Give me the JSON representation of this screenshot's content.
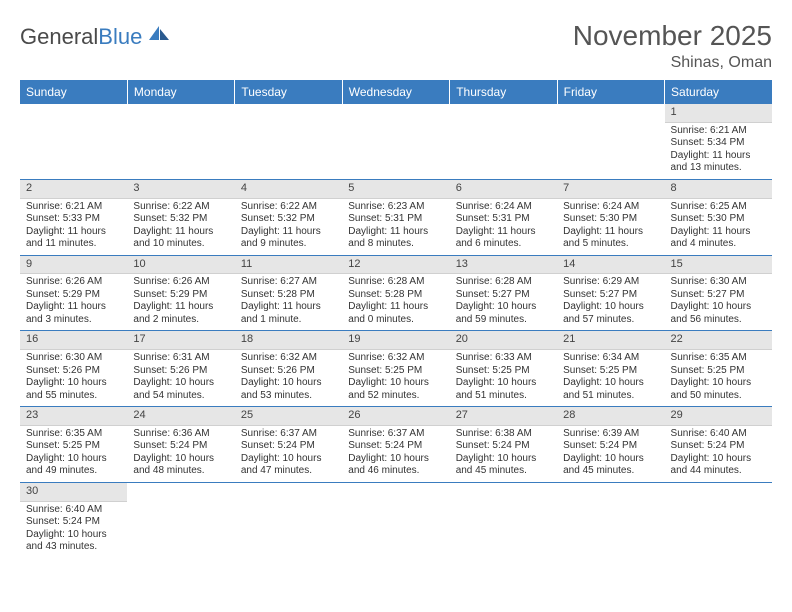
{
  "logo": {
    "textDark": "General",
    "textBlue": "Blue"
  },
  "header": {
    "monthTitle": "November 2025",
    "location": "Shinas, Oman"
  },
  "colors": {
    "headerBlue": "#3a7cbf",
    "dayNumBg": "#e6e6e6",
    "textDark": "#333333",
    "logoDark": "#4a4a4a",
    "logoBlue": "#3a7cbf",
    "borderBlue": "#3a7cbf"
  },
  "daysOfWeek": [
    "Sunday",
    "Monday",
    "Tuesday",
    "Wednesday",
    "Thursday",
    "Friday",
    "Saturday"
  ],
  "labels": {
    "sunrise": "Sunrise:",
    "sunset": "Sunset:",
    "daylight": "Daylight:",
    "and": "and"
  },
  "weeks": [
    [
      null,
      null,
      null,
      null,
      null,
      null,
      {
        "d": "1",
        "sr": "6:21 AM",
        "ss": "5:34 PM",
        "dl1": "11 hours",
        "dl2": "13 minutes."
      }
    ],
    [
      {
        "d": "2",
        "sr": "6:21 AM",
        "ss": "5:33 PM",
        "dl1": "11 hours",
        "dl2": "11 minutes."
      },
      {
        "d": "3",
        "sr": "6:22 AM",
        "ss": "5:32 PM",
        "dl1": "11 hours",
        "dl2": "10 minutes."
      },
      {
        "d": "4",
        "sr": "6:22 AM",
        "ss": "5:32 PM",
        "dl1": "11 hours",
        "dl2": "9 minutes."
      },
      {
        "d": "5",
        "sr": "6:23 AM",
        "ss": "5:31 PM",
        "dl1": "11 hours",
        "dl2": "8 minutes."
      },
      {
        "d": "6",
        "sr": "6:24 AM",
        "ss": "5:31 PM",
        "dl1": "11 hours",
        "dl2": "6 minutes."
      },
      {
        "d": "7",
        "sr": "6:24 AM",
        "ss": "5:30 PM",
        "dl1": "11 hours",
        "dl2": "5 minutes."
      },
      {
        "d": "8",
        "sr": "6:25 AM",
        "ss": "5:30 PM",
        "dl1": "11 hours",
        "dl2": "4 minutes."
      }
    ],
    [
      {
        "d": "9",
        "sr": "6:26 AM",
        "ss": "5:29 PM",
        "dl1": "11 hours",
        "dl2": "3 minutes."
      },
      {
        "d": "10",
        "sr": "6:26 AM",
        "ss": "5:29 PM",
        "dl1": "11 hours",
        "dl2": "2 minutes."
      },
      {
        "d": "11",
        "sr": "6:27 AM",
        "ss": "5:28 PM",
        "dl1": "11 hours",
        "dl2": "1 minute."
      },
      {
        "d": "12",
        "sr": "6:28 AM",
        "ss": "5:28 PM",
        "dl1": "11 hours",
        "dl2": "0 minutes."
      },
      {
        "d": "13",
        "sr": "6:28 AM",
        "ss": "5:27 PM",
        "dl1": "10 hours",
        "dl2": "59 minutes."
      },
      {
        "d": "14",
        "sr": "6:29 AM",
        "ss": "5:27 PM",
        "dl1": "10 hours",
        "dl2": "57 minutes."
      },
      {
        "d": "15",
        "sr": "6:30 AM",
        "ss": "5:27 PM",
        "dl1": "10 hours",
        "dl2": "56 minutes."
      }
    ],
    [
      {
        "d": "16",
        "sr": "6:30 AM",
        "ss": "5:26 PM",
        "dl1": "10 hours",
        "dl2": "55 minutes."
      },
      {
        "d": "17",
        "sr": "6:31 AM",
        "ss": "5:26 PM",
        "dl1": "10 hours",
        "dl2": "54 minutes."
      },
      {
        "d": "18",
        "sr": "6:32 AM",
        "ss": "5:26 PM",
        "dl1": "10 hours",
        "dl2": "53 minutes."
      },
      {
        "d": "19",
        "sr": "6:32 AM",
        "ss": "5:25 PM",
        "dl1": "10 hours",
        "dl2": "52 minutes."
      },
      {
        "d": "20",
        "sr": "6:33 AM",
        "ss": "5:25 PM",
        "dl1": "10 hours",
        "dl2": "51 minutes."
      },
      {
        "d": "21",
        "sr": "6:34 AM",
        "ss": "5:25 PM",
        "dl1": "10 hours",
        "dl2": "51 minutes."
      },
      {
        "d": "22",
        "sr": "6:35 AM",
        "ss": "5:25 PM",
        "dl1": "10 hours",
        "dl2": "50 minutes."
      }
    ],
    [
      {
        "d": "23",
        "sr": "6:35 AM",
        "ss": "5:25 PM",
        "dl1": "10 hours",
        "dl2": "49 minutes."
      },
      {
        "d": "24",
        "sr": "6:36 AM",
        "ss": "5:24 PM",
        "dl1": "10 hours",
        "dl2": "48 minutes."
      },
      {
        "d": "25",
        "sr": "6:37 AM",
        "ss": "5:24 PM",
        "dl1": "10 hours",
        "dl2": "47 minutes."
      },
      {
        "d": "26",
        "sr": "6:37 AM",
        "ss": "5:24 PM",
        "dl1": "10 hours",
        "dl2": "46 minutes."
      },
      {
        "d": "27",
        "sr": "6:38 AM",
        "ss": "5:24 PM",
        "dl1": "10 hours",
        "dl2": "45 minutes."
      },
      {
        "d": "28",
        "sr": "6:39 AM",
        "ss": "5:24 PM",
        "dl1": "10 hours",
        "dl2": "45 minutes."
      },
      {
        "d": "29",
        "sr": "6:40 AM",
        "ss": "5:24 PM",
        "dl1": "10 hours",
        "dl2": "44 minutes."
      }
    ],
    [
      {
        "d": "30",
        "sr": "6:40 AM",
        "ss": "5:24 PM",
        "dl1": "10 hours",
        "dl2": "43 minutes."
      },
      null,
      null,
      null,
      null,
      null,
      null
    ]
  ]
}
